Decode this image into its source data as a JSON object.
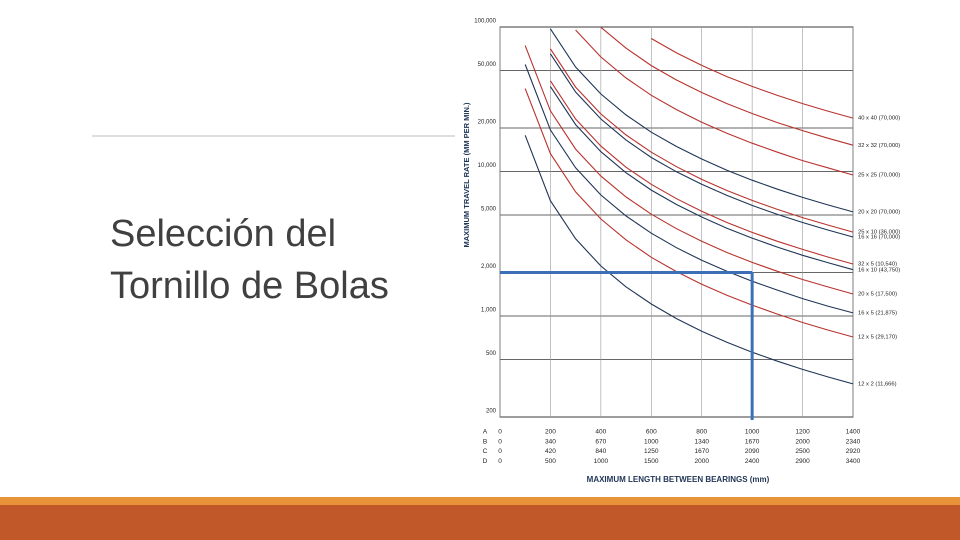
{
  "slide": {
    "title_lines": [
      "Selección del",
      "Tornillo de Bolas"
    ]
  },
  "chart_data": {
    "type": "line",
    "y_label": "MAXIMUM TRAVEL RATE (MM PER MIN.)",
    "x_label": "MAXIMUM LENGTH BETWEEN BEARINGS (mm)",
    "log_y": true,
    "grid": true,
    "ylim": [
      200,
      100000
    ],
    "yticks": [
      200,
      500,
      {
        "value": 1000,
        "label": "1,000"
      },
      {
        "value": 2000,
        "label": "2,000"
      },
      {
        "value": 5000,
        "label": "5,000"
      },
      {
        "value": 10000,
        "label": "10,000"
      },
      {
        "value": 20000,
        "label": "20,000"
      },
      {
        "value": 50000,
        "label": "50,000"
      },
      {
        "value": 100000,
        "label": "100,000"
      }
    ],
    "xlim": [
      0,
      1400
    ],
    "xticks": [
      0,
      200,
      400,
      600,
      800,
      1000,
      1200,
      1400
    ],
    "x_rows": [
      {
        "name": "A",
        "labels": [
          0,
          200,
          400,
          600,
          800,
          1000,
          1200,
          1400
        ]
      },
      {
        "name": "B",
        "labels": [
          0,
          340,
          670,
          1000,
          1340,
          1670,
          2000,
          2340
        ]
      },
      {
        "name": "C",
        "labels": [
          0,
          420,
          840,
          1250,
          1670,
          2090,
          2500,
          2920
        ]
      },
      {
        "name": "D",
        "labels": [
          0,
          500,
          1000,
          1500,
          2000,
          2400,
          2900,
          3400
        ]
      }
    ],
    "guide": {
      "x": 1000,
      "y": 2000,
      "color": "#3d6fb6"
    },
    "x": [
      100,
      200,
      300,
      400,
      500,
      600,
      700,
      800,
      900,
      1000,
      1100,
      1200,
      1300,
      1400
    ],
    "series": [
      {
        "name": "40 x 40 (70,000)",
        "color": "#b8322e",
        "values": [
          null,
          null,
          null,
          null,
          null,
          83300,
          66200,
          54200,
          45400,
          38800,
          33600,
          29500,
          26200,
          23400
        ]
      },
      {
        "name": "32 x 32 (70,000)",
        "color": "#b8322e",
        "values": [
          null,
          null,
          null,
          99600,
          71300,
          54100,
          43000,
          35200,
          29500,
          25200,
          21800,
          19200,
          17000,
          15200
        ]
      },
      {
        "name": "25 x 25 (70,000)",
        "color": "#b8322e",
        "values": [
          null,
          null,
          95400,
          62000,
          44400,
          33700,
          26800,
          21900,
          18400,
          15700,
          13600,
          11900,
          10600,
          9460
        ]
      },
      {
        "name": "20 x 20 (70,000)",
        "color": "#1f3556",
        "values": [
          null,
          97200,
          52900,
          34400,
          24600,
          18700,
          14900,
          12200,
          10200,
          8700,
          7540,
          6620,
          5870,
          5250
        ]
      },
      {
        "name": "25 x 10 (36,000)",
        "color": "#b8322e",
        "values": [
          null,
          70600,
          38400,
          25000,
          17900,
          13600,
          10800,
          8820,
          7390,
          6310,
          5470,
          4800,
          4260,
          3810
        ]
      },
      {
        "name": "16 x 16 (70,000)",
        "color": "#1f3556",
        "values": [
          null,
          65200,
          35500,
          23100,
          16500,
          12500,
          9960,
          8150,
          6830,
          5830,
          5050,
          4440,
          3940,
          3520
        ]
      },
      {
        "name": "32 x 5 (10,540)",
        "color": "#b8322e",
        "values": [
          null,
          42400,
          23100,
          15000,
          10700,
          8150,
          6480,
          5300,
          4440,
          3790,
          3290,
          2890,
          2560,
          2290
        ]
      },
      {
        "name": "16 x 10 (43,750)",
        "color": "#1f3556",
        "values": [
          null,
          38700,
          21100,
          13700,
          9800,
          7440,
          5910,
          4840,
          4050,
          3460,
          3000,
          2630,
          2340,
          2090
        ]
      },
      {
        "name": "20 x 5 (17,500)",
        "color": "#b8322e",
        "values": [
          74400,
          26300,
          14300,
          9300,
          6660,
          5060,
          4020,
          3290,
          2750,
          2350,
          2040,
          1790,
          1590,
          1420
        ]
      },
      {
        "name": "16 x 5 (21,875)",
        "color": "#1f3556",
        "values": [
          55000,
          19400,
          10600,
          6880,
          4920,
          3740,
          2970,
          2430,
          2040,
          1740,
          1510,
          1320,
          1170,
          1050
        ]
      },
      {
        "name": "12 x 5 (29,170)",
        "color": "#b8322e",
        "values": [
          37500,
          13300,
          7220,
          4690,
          3360,
          2550,
          2030,
          1660,
          1390,
          1190,
          1030,
          902,
          800,
          716
        ]
      },
      {
        "name": "12 x 2 (11,666)",
        "color": "#1f3556",
        "values": [
          17800,
          6280,
          3420,
          2220,
          1590,
          1210,
          959,
          785,
          658,
          562,
          487,
          427,
          379,
          339
        ]
      }
    ]
  }
}
